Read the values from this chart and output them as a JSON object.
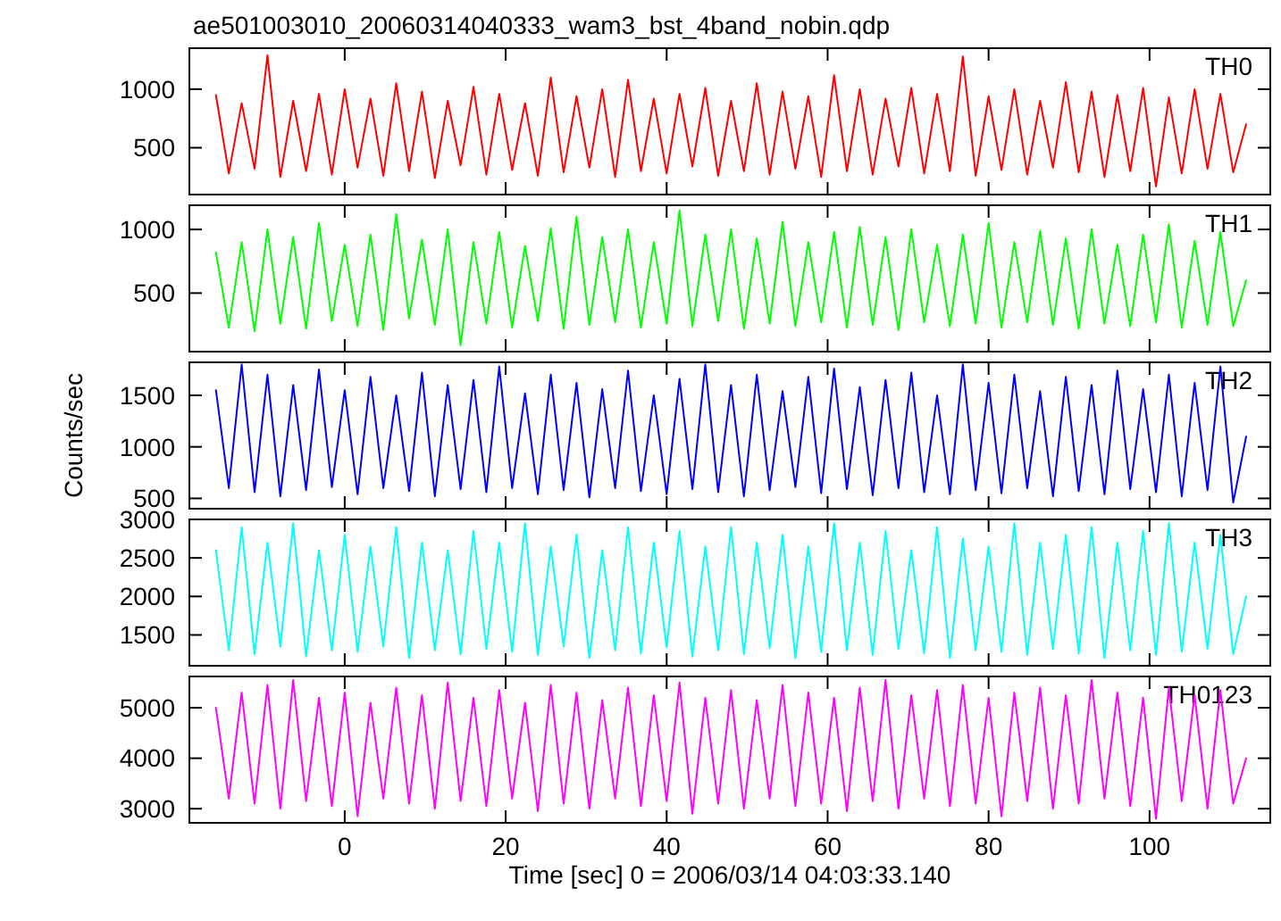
{
  "chart_data": [
    {
      "type": "line",
      "title": "ae501003010_20060314040333_wam3_bst_4band_nobin.qdp",
      "x": [
        -16,
        -14.4,
        -12.8,
        -11.2,
        -9.6,
        -8,
        -6.4,
        -4.8,
        -3.2,
        -1.6,
        0,
        1.6,
        3.2,
        4.8,
        6.4,
        8,
        9.6,
        11.2,
        12.8,
        14.4,
        16,
        17.6,
        19.2,
        20.8,
        22.4,
        24,
        25.6,
        27.2,
        28.8,
        30.4,
        32,
        33.6,
        35.2,
        36.8,
        38.4,
        40,
        41.6,
        43.2,
        44.8,
        46.4,
        48,
        49.6,
        51.2,
        52.8,
        54.4,
        56,
        57.6,
        59.2,
        60.8,
        62.4,
        64,
        65.6,
        67.2,
        68.8,
        70.4,
        72,
        73.6,
        75.2,
        76.8,
        78.4,
        80,
        81.6,
        83.2,
        84.8,
        86.4,
        88,
        89.6,
        91.2,
        92.8,
        94.4,
        96,
        97.6,
        99.2,
        100.8,
        102.4,
        104,
        105.6,
        107.2,
        108.8,
        110.4,
        112
      ],
      "xlim": [
        -19.3,
        115
      ],
      "xticks": [
        0,
        20,
        40,
        60,
        80,
        100
      ],
      "ylim": [
        100,
        1350
      ],
      "yticks": [
        500,
        1000
      ],
      "tick_labels": "y",
      "series": [
        {
          "name": "TH0",
          "color": "#ff0000",
          "values": [
            950,
            280,
            880,
            320,
            1290,
            250,
            900,
            300,
            960,
            270,
            1000,
            330,
            920,
            260,
            1050,
            300,
            980,
            240,
            900,
            350,
            1020,
            270,
            960,
            310,
            880,
            260,
            1100,
            290,
            940,
            330,
            1000,
            250,
            1080,
            300,
            920,
            280,
            960,
            340,
            1010,
            260,
            900,
            300,
            1050,
            270,
            980,
            320,
            940,
            250,
            1120,
            300,
            1000,
            270,
            920,
            340,
            1010,
            280,
            960,
            300,
            1280,
            260,
            940,
            310,
            1000,
            270,
            900,
            330,
            1060,
            290,
            980,
            250,
            950,
            300,
            1010,
            170,
            930,
            280,
            1000,
            320,
            960,
            290,
            700
          ]
        }
      ]
    },
    {
      "type": "line",
      "x": [
        -16,
        -14.4,
        -12.8,
        -11.2,
        -9.6,
        -8,
        -6.4,
        -4.8,
        -3.2,
        -1.6,
        0,
        1.6,
        3.2,
        4.8,
        6.4,
        8,
        9.6,
        11.2,
        12.8,
        14.4,
        16,
        17.6,
        19.2,
        20.8,
        22.4,
        24,
        25.6,
        27.2,
        28.8,
        30.4,
        32,
        33.6,
        35.2,
        36.8,
        38.4,
        40,
        41.6,
        43.2,
        44.8,
        46.4,
        48,
        49.6,
        51.2,
        52.8,
        54.4,
        56,
        57.6,
        59.2,
        60.8,
        62.4,
        64,
        65.6,
        67.2,
        68.8,
        70.4,
        72,
        73.6,
        75.2,
        76.8,
        78.4,
        80,
        81.6,
        83.2,
        84.8,
        86.4,
        88,
        89.6,
        91.2,
        92.8,
        94.4,
        96,
        97.6,
        99.2,
        100.8,
        102.4,
        104,
        105.6,
        107.2,
        108.8,
        110.4,
        112
      ],
      "xlim": [
        -19.3,
        115
      ],
      "xticks": [
        0,
        20,
        40,
        60,
        80,
        100
      ],
      "ylim": [
        40,
        1190
      ],
      "yticks": [
        500,
        1000
      ],
      "tick_labels": "y",
      "series": [
        {
          "name": "TH1",
          "color": "#00ff00",
          "values": [
            820,
            230,
            900,
            200,
            1000,
            260,
            940,
            220,
            1050,
            280,
            880,
            240,
            960,
            210,
            1120,
            300,
            920,
            250,
            1000,
            90,
            900,
            260,
            980,
            230,
            870,
            280,
            1010,
            220,
            1100,
            250,
            940,
            270,
            1000,
            230,
            900,
            260,
            1150,
            240,
            960,
            280,
            1000,
            220,
            930,
            260,
            1060,
            240,
            900,
            270,
            980,
            230,
            1020,
            250,
            940,
            210,
            1000,
            270,
            880,
            240,
            960,
            260,
            1050,
            230,
            900,
            270,
            990,
            250,
            930,
            220,
            1000,
            260,
            880,
            240,
            960,
            270,
            1040,
            230,
            910,
            250,
            980,
            240,
            600
          ]
        }
      ]
    },
    {
      "type": "line",
      "ylabel": "Counts/sec",
      "x": [
        -16,
        -14.4,
        -12.8,
        -11.2,
        -9.6,
        -8,
        -6.4,
        -4.8,
        -3.2,
        -1.6,
        0,
        1.6,
        3.2,
        4.8,
        6.4,
        8,
        9.6,
        11.2,
        12.8,
        14.4,
        16,
        17.6,
        19.2,
        20.8,
        22.4,
        24,
        25.6,
        27.2,
        28.8,
        30.4,
        32,
        33.6,
        35.2,
        36.8,
        38.4,
        40,
        41.6,
        43.2,
        44.8,
        46.4,
        48,
        49.6,
        51.2,
        52.8,
        54.4,
        56,
        57.6,
        59.2,
        60.8,
        62.4,
        64,
        65.6,
        67.2,
        68.8,
        70.4,
        72,
        73.6,
        75.2,
        76.8,
        78.4,
        80,
        81.6,
        83.2,
        84.8,
        86.4,
        88,
        89.6,
        91.2,
        92.8,
        94.4,
        96,
        97.6,
        99.2,
        100.8,
        102.4,
        104,
        105.6,
        107.2,
        108.8,
        110.4,
        112
      ],
      "xlim": [
        -19.3,
        115
      ],
      "xticks": [
        0,
        20,
        40,
        60,
        80,
        100
      ],
      "ylim": [
        400,
        1820
      ],
      "yticks": [
        500,
        1000,
        1500
      ],
      "tick_labels": "y",
      "series": [
        {
          "name": "TH2",
          "color": "#0000ff",
          "values": [
            1550,
            600,
            1800,
            560,
            1700,
            520,
            1600,
            580,
            1750,
            610,
            1550,
            540,
            1680,
            600,
            1500,
            570,
            1720,
            520,
            1600,
            590,
            1650,
            560,
            1780,
            600,
            1520,
            540,
            1700,
            580,
            1620,
            510,
            1560,
            600,
            1740,
            570,
            1500,
            540,
            1660,
            590,
            1800,
            560,
            1600,
            520,
            1700,
            580,
            1540,
            610,
            1680,
            550,
            1760,
            590,
            1580,
            530,
            1650,
            600,
            1720,
            560,
            1500,
            540,
            1800,
            580,
            1620,
            550,
            1700,
            600,
            1540,
            520,
            1680,
            570,
            1600,
            540,
            1740,
            590,
            1560,
            560,
            1700,
            520,
            1620,
            580,
            1780,
            460,
            1100
          ]
        }
      ]
    },
    {
      "type": "line",
      "x": [
        -16,
        -14.4,
        -12.8,
        -11.2,
        -9.6,
        -8,
        -6.4,
        -4.8,
        -3.2,
        -1.6,
        0,
        1.6,
        3.2,
        4.8,
        6.4,
        8,
        9.6,
        11.2,
        12.8,
        14.4,
        16,
        17.6,
        19.2,
        20.8,
        22.4,
        24,
        25.6,
        27.2,
        28.8,
        30.4,
        32,
        33.6,
        35.2,
        36.8,
        38.4,
        40,
        41.6,
        43.2,
        44.8,
        46.4,
        48,
        49.6,
        51.2,
        52.8,
        54.4,
        56,
        57.6,
        59.2,
        60.8,
        62.4,
        64,
        65.6,
        67.2,
        68.8,
        70.4,
        72,
        73.6,
        75.2,
        76.8,
        78.4,
        80,
        81.6,
        83.2,
        84.8,
        86.4,
        88,
        89.6,
        91.2,
        92.8,
        94.4,
        96,
        97.6,
        99.2,
        100.8,
        102.4,
        104,
        105.6,
        107.2,
        108.8,
        110.4,
        112
      ],
      "xlim": [
        -19.3,
        115
      ],
      "xticks": [
        0,
        20,
        40,
        60,
        80,
        100
      ],
      "ylim": [
        1100,
        3000
      ],
      "yticks": [
        1500,
        2000,
        2500,
        3000
      ],
      "tick_labels": "y",
      "series": [
        {
          "name": "TH3",
          "color": "#00ffff",
          "values": [
            2600,
            1300,
            2900,
            1250,
            2700,
            1350,
            2950,
            1220,
            2600,
            1300,
            2800,
            1280,
            2650,
            1350,
            2900,
            1200,
            2700,
            1300,
            2600,
            1250,
            2850,
            1320,
            2700,
            1280,
            2950,
            1240,
            2650,
            1350,
            2800,
            1200,
            2600,
            1300,
            2900,
            1260,
            2700,
            1340,
            2850,
            1220,
            2650,
            1300,
            2900,
            1250,
            2700,
            1330,
            2800,
            1200,
            2650,
            1280,
            2950,
            1300,
            2700,
            1240,
            2850,
            1320,
            2600,
            1260,
            2900,
            1200,
            2750,
            1300,
            2650,
            1280,
            2950,
            1240,
            2700,
            1320,
            2800,
            1260,
            2900,
            1200,
            2700,
            1300,
            2850,
            1240,
            2950,
            1280,
            2700,
            1320,
            2800,
            1250,
            2000
          ]
        }
      ]
    },
    {
      "type": "line",
      "xlabel": "Time [sec] 0 = 2006/03/14 04:03:33.140",
      "x": [
        -16,
        -14.4,
        -12.8,
        -11.2,
        -9.6,
        -8,
        -6.4,
        -4.8,
        -3.2,
        -1.6,
        0,
        1.6,
        3.2,
        4.8,
        6.4,
        8,
        9.6,
        11.2,
        12.8,
        14.4,
        16,
        17.6,
        19.2,
        20.8,
        22.4,
        24,
        25.6,
        27.2,
        28.8,
        30.4,
        32,
        33.6,
        35.2,
        36.8,
        38.4,
        40,
        41.6,
        43.2,
        44.8,
        46.4,
        48,
        49.6,
        51.2,
        52.8,
        54.4,
        56,
        57.6,
        59.2,
        60.8,
        62.4,
        64,
        65.6,
        67.2,
        68.8,
        70.4,
        72,
        73.6,
        75.2,
        76.8,
        78.4,
        80,
        81.6,
        83.2,
        84.8,
        86.4,
        88,
        89.6,
        91.2,
        92.8,
        94.4,
        96,
        97.6,
        99.2,
        100.8,
        102.4,
        104,
        105.6,
        107.2,
        108.8,
        110.4,
        112
      ],
      "xlim": [
        -19.3,
        115
      ],
      "xticks": [
        0,
        20,
        40,
        60,
        80,
        100
      ],
      "ylim": [
        2720,
        5620
      ],
      "yticks": [
        3000,
        4000,
        5000
      ],
      "series": [
        {
          "name": "TH0123",
          "color": "#ff00ff",
          "values": [
            5000,
            3200,
            5300,
            3100,
            5450,
            3000,
            5550,
            3150,
            5200,
            3050,
            5300,
            2850,
            5100,
            3200,
            5400,
            3100,
            5250,
            3000,
            5500,
            3150,
            5200,
            3050,
            5350,
            3200,
            5100,
            2950,
            5450,
            3100,
            5300,
            3000,
            5150,
            3200,
            5400,
            3050,
            5250,
            3150,
            5500,
            2900,
            5200,
            3100,
            5350,
            3000,
            5150,
            3200,
            5450,
            3050,
            5300,
            3100,
            5200,
            2950,
            5400,
            3150,
            5550,
            3000,
            5250,
            3200,
            5350,
            3050,
            5450,
            3100,
            5200,
            2850,
            5300,
            3150,
            5400,
            3000,
            5250,
            3100,
            5550,
            3200,
            5300,
            3050,
            5200,
            2800,
            5400,
            3150,
            5250,
            3000,
            5350,
            3100,
            4000
          ]
        }
      ]
    }
  ]
}
